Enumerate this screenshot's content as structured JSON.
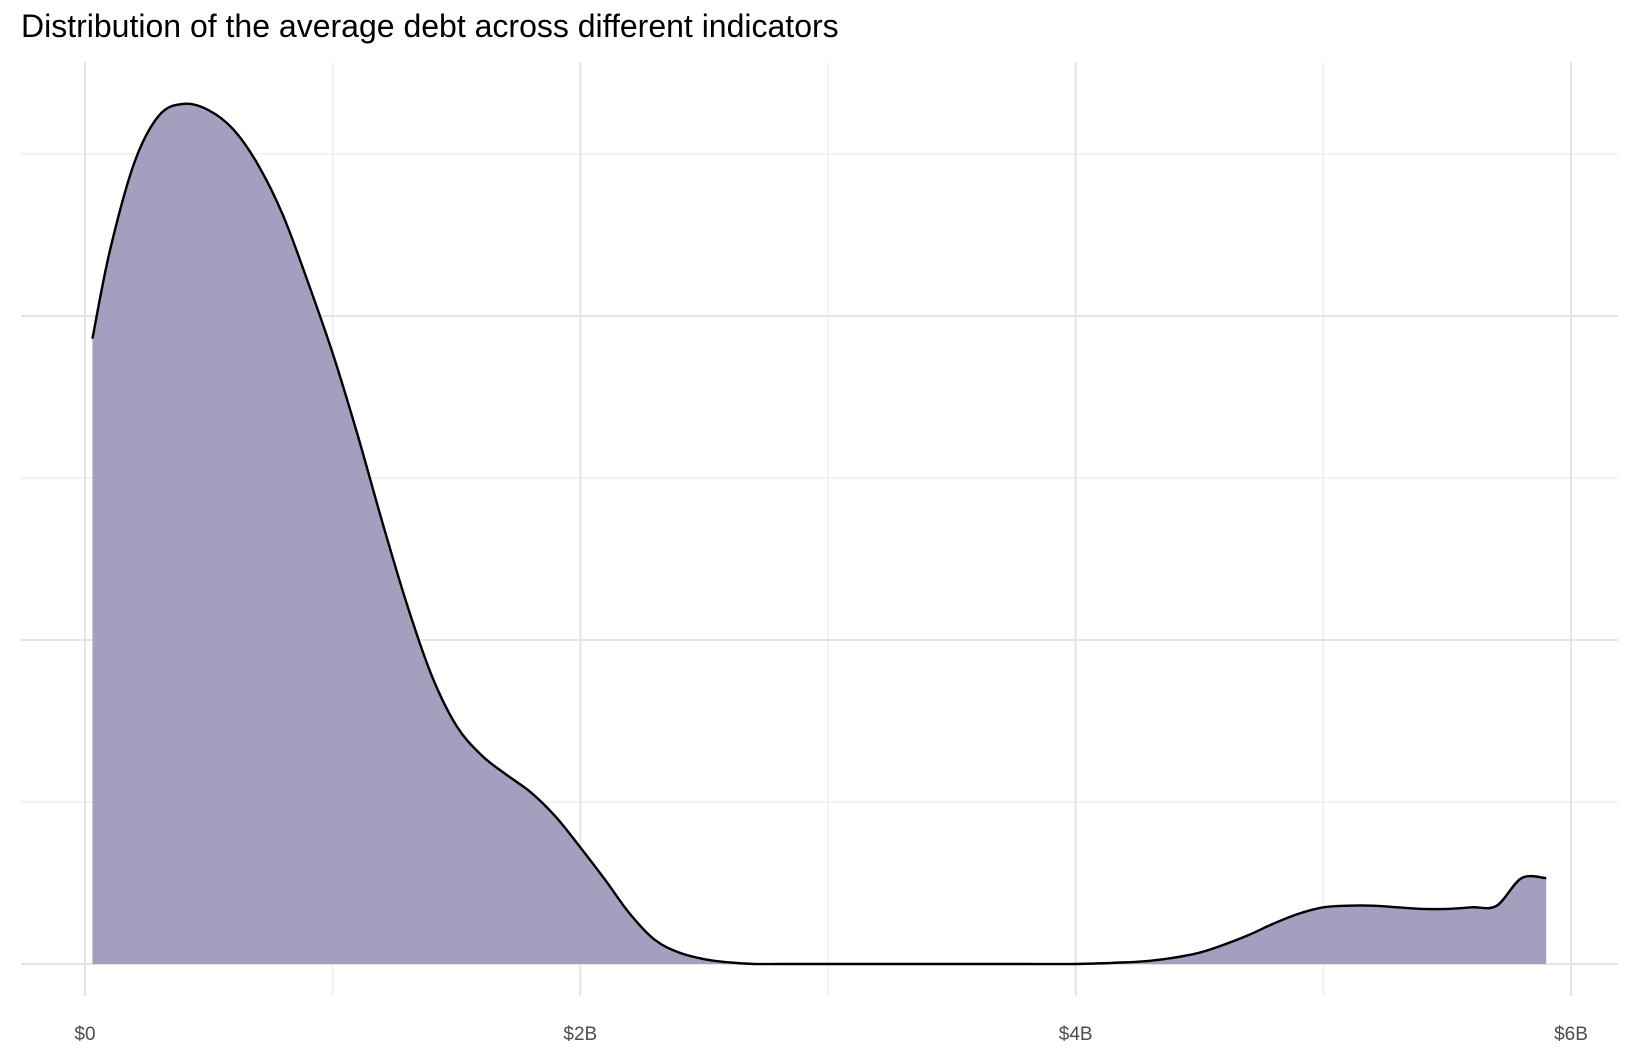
{
  "chart_data": {
    "type": "area",
    "title": "Distribution of the average debt across different indicators",
    "xlabel": "",
    "ylabel": "",
    "x_unit": "billion USD",
    "xlim": [
      -0.01,
      6.08
    ],
    "ylim": [
      -0.02,
      0.56
    ],
    "x_ticks": [
      {
        "value": 0,
        "label": "$0"
      },
      {
        "value": 2,
        "label": "$2B"
      },
      {
        "value": 4,
        "label": "$4B"
      },
      {
        "value": 6,
        "label": "$6B"
      }
    ],
    "x_minor_gridlines": [
      1,
      3,
      5
    ],
    "y_gridlines": [
      0,
      0.2,
      0.4
    ],
    "y_minor_gridlines": [
      0.1,
      0.3,
      0.5
    ],
    "y_tick_labels_shown": false,
    "grid": true,
    "legend": "none",
    "series": [
      {
        "fill_color": "#a29fbf",
        "line_color": "#000000",
        "x": [
          0.03,
          0.1,
          0.2,
          0.3,
          0.4,
          0.5,
          0.6,
          0.7,
          0.8,
          0.9,
          1.0,
          1.1,
          1.2,
          1.3,
          1.4,
          1.5,
          1.6,
          1.7,
          1.8,
          1.9,
          2.0,
          2.1,
          2.2,
          2.3,
          2.4,
          2.5,
          2.6,
          2.7,
          2.8,
          2.9,
          3.0,
          3.2,
          3.4,
          3.6,
          3.8,
          4.0,
          4.2,
          4.3,
          4.4,
          4.5,
          4.6,
          4.7,
          4.8,
          4.9,
          5.0,
          5.1,
          5.2,
          5.3,
          5.4,
          5.5,
          5.6,
          5.7,
          5.8,
          5.9
        ],
        "y": [
          0.386,
          0.44,
          0.495,
          0.524,
          0.531,
          0.527,
          0.515,
          0.493,
          0.462,
          0.421,
          0.377,
          0.327,
          0.273,
          0.222,
          0.178,
          0.147,
          0.129,
          0.117,
          0.106,
          0.091,
          0.072,
          0.052,
          0.031,
          0.015,
          0.007,
          0.003,
          0.001,
          0.0,
          0.0,
          0.0,
          0.0,
          0.0,
          0.0,
          0.0,
          0.0,
          0.0,
          0.001,
          0.002,
          0.004,
          0.007,
          0.012,
          0.018,
          0.025,
          0.031,
          0.035,
          0.036,
          0.036,
          0.035,
          0.034,
          0.034,
          0.035,
          0.036,
          0.053,
          0.053
        ]
      }
    ]
  }
}
